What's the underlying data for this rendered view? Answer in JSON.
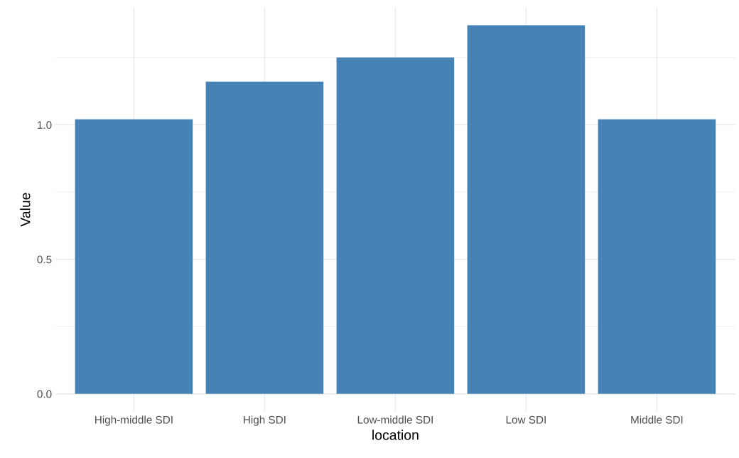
{
  "chart_data": {
    "type": "bar",
    "xlabel": "location",
    "ylabel": "Value",
    "categories": [
      "High-middle SDI",
      "High SDI",
      "Low-middle SDI",
      "Low SDI",
      "Middle SDI"
    ],
    "values": [
      1.02,
      1.16,
      1.25,
      1.37,
      1.02
    ],
    "color": "#4682b4",
    "ylim": [
      -0.068,
      1.438
    ],
    "yticks": [
      {
        "value": 0,
        "label": "0.0"
      },
      {
        "value": 0.5,
        "label": "0.5"
      },
      {
        "value": 1,
        "label": "1.0"
      }
    ],
    "grid": true
  }
}
